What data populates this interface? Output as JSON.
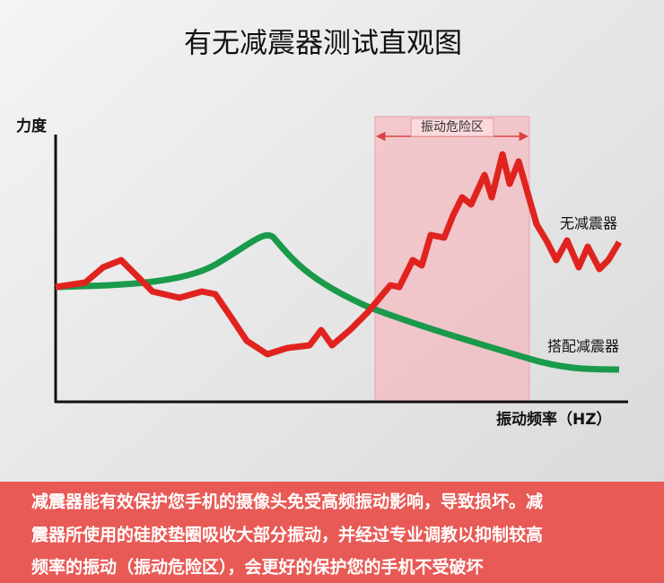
{
  "header": {
    "title": "有无减震器测试直观图"
  },
  "diagram": {
    "y_axis_label": "力度",
    "x_axis_label": "振动频率（HZ）",
    "zone_label": "振动危险区",
    "curves": [
      {
        "label": "无减震器"
      },
      {
        "label": "搭配减震器"
      }
    ]
  },
  "footer": {
    "lines": [
      "减震器能有效保护您手机的摄像头免受高频振动影响，导致损坏。减",
      "震器所使用的硅胶垫圈吸收大部分振动，并经过专业调教以抑制较高",
      "频率的振动（振动危险区），会更好的保护您的手机不受破坏"
    ]
  }
}
